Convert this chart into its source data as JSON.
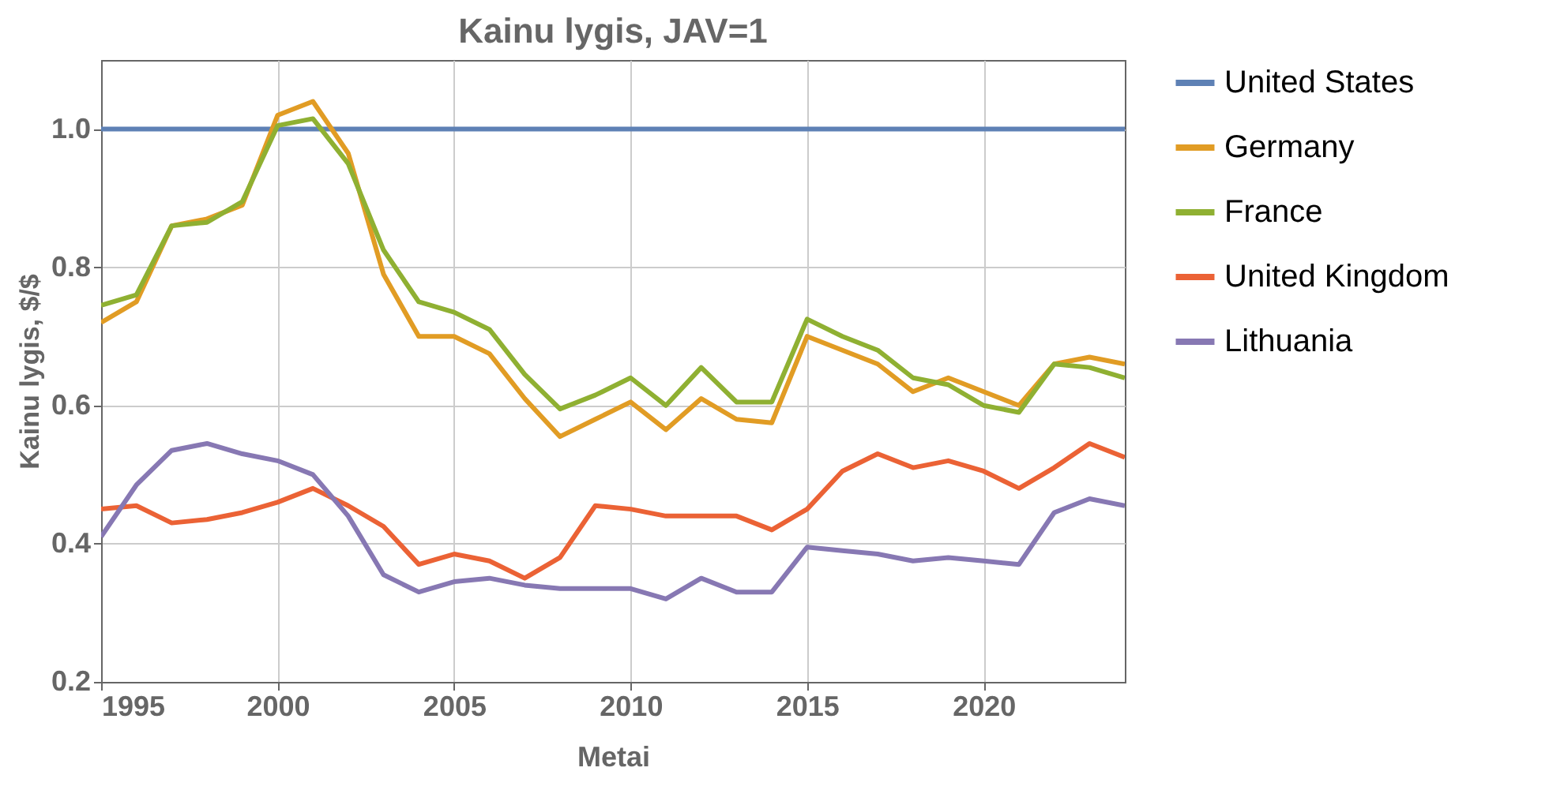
{
  "chart_data": {
    "type": "line",
    "title": "Kainu lygis, JAV=1",
    "xlabel": "Metai",
    "ylabel": "Kainu lygis, $/$",
    "x": [
      1995,
      1996,
      1997,
      1998,
      1999,
      2000,
      2001,
      2002,
      2003,
      2004,
      2005,
      2006,
      2007,
      2008,
      2009,
      2010,
      2011,
      2012,
      2013,
      2014,
      2015,
      2016,
      2017,
      2018,
      2019,
      2020,
      2021,
      2022,
      2023,
      2024
    ],
    "series": [
      {
        "name": "United States",
        "color": "#5e81b5",
        "values": [
          1,
          1,
          1,
          1,
          1,
          1,
          1,
          1,
          1,
          1,
          1,
          1,
          1,
          1,
          1,
          1,
          1,
          1,
          1,
          1,
          1,
          1,
          1,
          1,
          1,
          1,
          1,
          1,
          1,
          1
        ]
      },
      {
        "name": "Germany",
        "color": "#e19c24",
        "values": [
          0.72,
          0.75,
          0.86,
          0.87,
          0.89,
          1.02,
          1.04,
          0.965,
          0.79,
          0.7,
          0.7,
          0.675,
          0.61,
          0.555,
          0.58,
          0.605,
          0.565,
          0.61,
          0.58,
          0.575,
          0.7,
          0.68,
          0.66,
          0.62,
          0.64,
          0.62,
          0.6,
          0.66,
          0.67,
          0.66
        ]
      },
      {
        "name": "France",
        "color": "#8fb032",
        "values": [
          0.745,
          0.76,
          0.86,
          0.865,
          0.895,
          1.005,
          1.015,
          0.95,
          0.825,
          0.75,
          0.735,
          0.71,
          0.645,
          0.595,
          0.615,
          0.64,
          0.6,
          0.655,
          0.605,
          0.605,
          0.725,
          0.7,
          0.68,
          0.64,
          0.63,
          0.6,
          0.59,
          0.66,
          0.655,
          0.64
        ]
      },
      {
        "name": "United Kingdom",
        "color": "#eb6235",
        "values": [
          0.45,
          0.455,
          0.43,
          0.435,
          0.445,
          0.46,
          0.48,
          0.455,
          0.425,
          0.37,
          0.385,
          0.375,
          0.35,
          0.38,
          0.455,
          0.45,
          0.44,
          0.44,
          0.44,
          0.42,
          0.45,
          0.505,
          0.53,
          0.51,
          0.52,
          0.505,
          0.48,
          0.51,
          0.545,
          0.525
        ]
      },
      {
        "name": "Lithuania",
        "color": "#8778b3",
        "values": [
          0.41,
          0.485,
          0.535,
          0.545,
          0.53,
          0.52,
          0.5,
          0.44,
          0.355,
          0.33,
          0.345,
          0.35,
          0.34,
          0.335,
          0.335,
          0.335,
          0.32,
          0.35,
          0.33,
          0.33,
          0.395,
          0.39,
          0.385,
          0.375,
          0.38,
          0.375,
          0.37,
          0.445,
          0.465,
          0.455
        ]
      }
    ],
    "xlim": [
      1995,
      2024
    ],
    "xticks": [
      1995,
      2000,
      2005,
      2010,
      2015,
      2020
    ],
    "ylim": [
      0.2,
      1.1
    ],
    "yticks": [
      {
        "value": 0.2,
        "label": "0.2"
      },
      {
        "value": 0.4,
        "label": "0.4"
      },
      {
        "value": 0.6,
        "label": "0.6"
      },
      {
        "value": 0.8,
        "label": "0.8"
      },
      {
        "value": 1,
        "label": "1.0"
      }
    ],
    "grid": true,
    "legend": "right",
    "marker": "none",
    "line_style": "solid"
  }
}
